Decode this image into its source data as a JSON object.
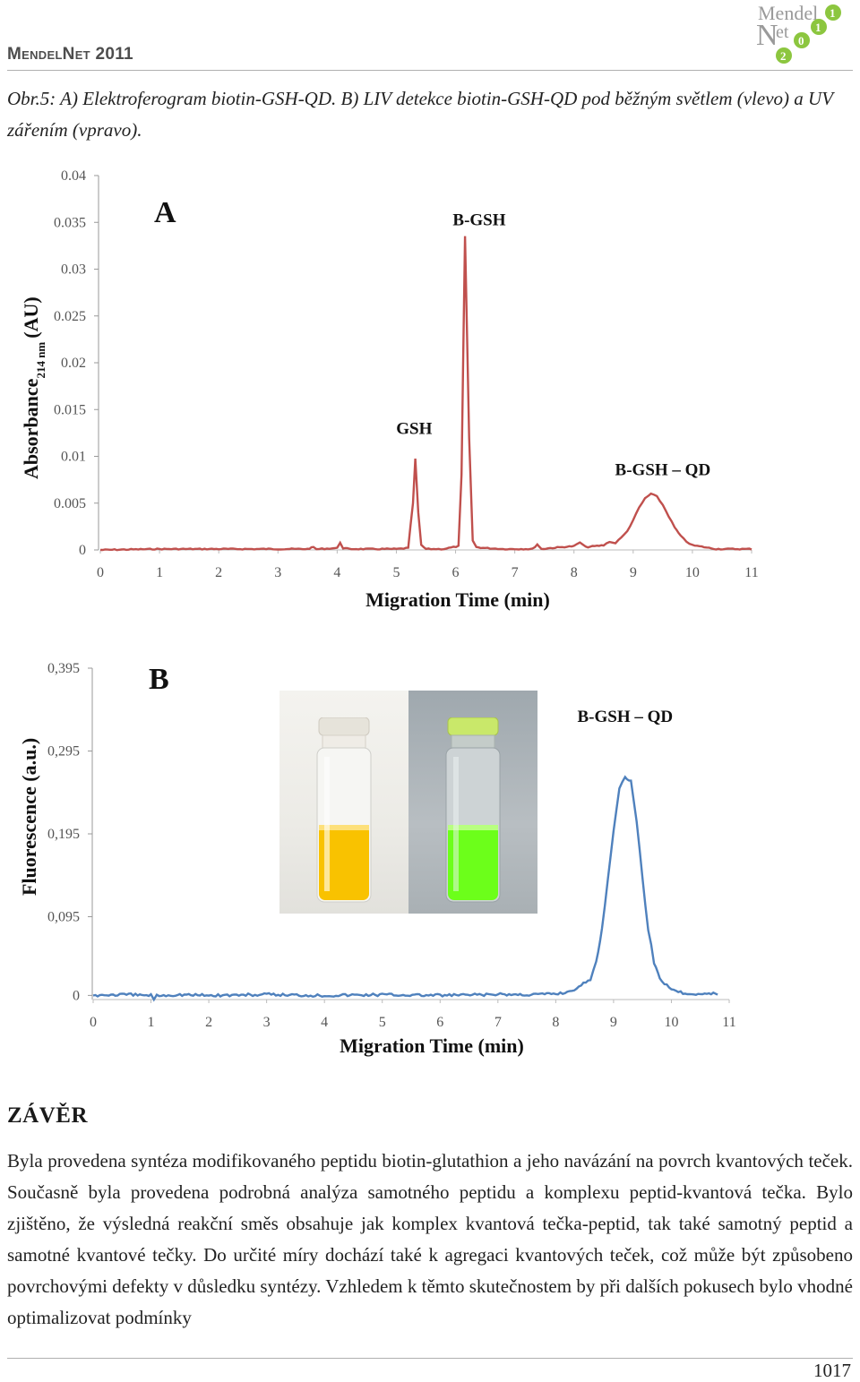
{
  "header": {
    "title": "MendelNet 2011",
    "logo_text_1": "Mendel",
    "logo_text_2": "et",
    "logo_letter_n": "N",
    "logo_digits": [
      "1",
      "1",
      "0",
      "2"
    ]
  },
  "caption": "Obr.5: A) Elektroferogram biotin-GSH-QD. B) LIV detekce biotin-GSH-QD pod běžným světlem (vlevo) a UV zářením (vpravo).",
  "chart_data": [
    {
      "type": "line",
      "panel": "A",
      "ylabel": "Absorbance",
      "ylabel_sub": "214 nm",
      "ylabel_unit": "(AU)",
      "xlabel": "Migration Time (min)",
      "xlim": [
        0,
        11
      ],
      "ylim": [
        0,
        0.04
      ],
      "x_ticks": [
        "0",
        "1",
        "2",
        "3",
        "4",
        "5",
        "6",
        "7",
        "8",
        "9",
        "10",
        "11"
      ],
      "y_ticks": [
        "0",
        "0.005",
        "0.01",
        "0.015",
        "0.02",
        "0.025",
        "0.03",
        "0.035",
        "0.04"
      ],
      "color": "#c0504d",
      "annotations": [
        {
          "text": "GSH",
          "x": 5.3,
          "y": 0.0124
        },
        {
          "text": "B-GSH",
          "x": 6.4,
          "y": 0.0347
        },
        {
          "text": "B-GSH – QD",
          "x": 9.5,
          "y": 0.008
        }
      ],
      "series": [
        {
          "x": [
            0,
            1,
            2,
            3,
            3.5,
            3.6,
            3.65,
            3.7,
            4.0,
            4.05,
            4.1,
            4.2,
            5.0,
            5.2,
            5.28,
            5.32,
            5.37,
            5.42,
            5.5,
            5.8,
            6.05,
            6.1,
            6.16,
            6.23,
            6.29,
            6.35,
            6.5,
            6.8,
            7.3,
            7.38,
            7.45,
            7.6,
            7.8,
            8.0,
            8.1,
            8.2,
            8.5,
            8.6,
            8.7,
            8.75,
            8.8,
            8.9,
            9.0,
            9.1,
            9.2,
            9.3,
            9.4,
            9.5,
            9.6,
            9.7,
            9.8,
            9.9,
            10.0,
            10.2,
            10.4,
            10.6,
            10.8,
            11.0
          ],
          "y": [
            0,
            0.0001,
            0.0001,
            0.0001,
            0.0001,
            0.0003,
            0.0001,
            0.0001,
            0.0002,
            0.0008,
            0.0002,
            0.0001,
            0.0001,
            0.0002,
            0.005,
            0.0097,
            0.004,
            0.0005,
            0.0001,
            0.0001,
            0.0004,
            0.008,
            0.0335,
            0.012,
            0.001,
            0.0003,
            0.0002,
            0.0001,
            0.0001,
            0.0006,
            0.0001,
            0.0002,
            0.0003,
            0.0004,
            0.0008,
            0.0003,
            0.0005,
            0.0009,
            0.0007,
            0.0011,
            0.0013,
            0.002,
            0.0032,
            0.0045,
            0.0055,
            0.006,
            0.0057,
            0.0048,
            0.0036,
            0.0024,
            0.0015,
            0.0009,
            0.0005,
            0.0003,
            0.0001,
            0.0001,
            0.0001,
            0.0001
          ]
        }
      ]
    },
    {
      "type": "line",
      "panel": "B",
      "ylabel": "Fluorescence (a.u.)",
      "xlabel": "Migration Time (min)",
      "xlim": [
        0,
        11
      ],
      "ylim": [
        -0.005,
        0.395
      ],
      "x_ticks": [
        "0",
        "1",
        "2",
        "3",
        "4",
        "5",
        "6",
        "7",
        "8",
        "9",
        "10",
        "11"
      ],
      "y_ticks": [
        "0",
        "0,095",
        "0,195",
        "0,295",
        "0,395"
      ],
      "color": "#4f81bd",
      "annotations": [
        {
          "text": "B-GSH – QD",
          "x": 9.2,
          "y": 0.33
        }
      ],
      "series": [
        {
          "x": [
            0,
            0.5,
            1.0,
            1.05,
            1.1,
            1.5,
            2,
            3,
            4,
            5,
            6,
            7,
            7.5,
            8.0,
            8.2,
            8.4,
            8.6,
            8.7,
            8.8,
            8.9,
            9.0,
            9.1,
            9.2,
            9.3,
            9.4,
            9.5,
            9.6,
            9.7,
            9.8,
            10.0,
            10.2,
            10.5,
            10.8
          ],
          "y": [
            0.0,
            0.001,
            0.0,
            -0.004,
            0.0,
            0.001,
            0.0,
            0.001,
            0.0,
            0.001,
            0.0,
            0.001,
            0.001,
            0.002,
            0.004,
            0.01,
            0.02,
            0.04,
            0.08,
            0.14,
            0.2,
            0.25,
            0.262,
            0.26,
            0.21,
            0.14,
            0.08,
            0.04,
            0.02,
            0.008,
            0.003,
            0.002,
            0.002
          ]
        }
      ]
    }
  ],
  "figure_b": {
    "photo_left": "vial under normal light (yellow)",
    "photo_right": "vial under UV light (green)"
  },
  "conclusion": {
    "title": "ZÁVĚR",
    "text": "Byla provedena syntéza modifikovaného peptidu biotin-glutathion a jeho navázání na povrch kvantových teček. Současně byla provedena podrobná analýza samotného peptidu a komplexu peptid-kvantová tečka. Bylo zjištěno, že výsledná reakční směs obsahuje jak komplex kvantová tečka-peptid, tak také samotný peptid a samotné kvantové tečky. Do určité míry dochází také k agregaci kvantových teček, což může být způsobeno povrchovými defekty v důsledku syntézy. Vzhledem k těmto skutečnostem by při dalších pokusech bylo vhodné optimalizovat podmínky"
  },
  "footer": {
    "page_number": "1017"
  }
}
